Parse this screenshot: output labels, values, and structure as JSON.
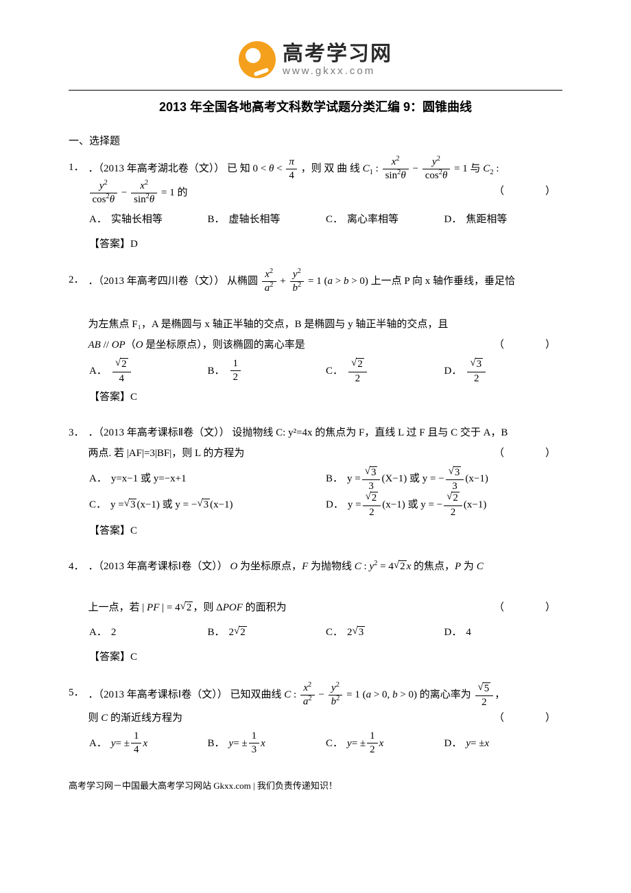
{
  "logo": {
    "cn": "高考学习网",
    "url": "www.gkxx.com"
  },
  "title": "2013 年全国各地高考文科数学试题分类汇编 9：圆锥曲线",
  "section_head": "一、选择题",
  "paren_marker": "（　　）",
  "questions": [
    {
      "num": "1．",
      "source": "．（2013 年高考湖北卷（文））",
      "stem_pre": "已 知 ",
      "stem_mid": "，则 双 曲 线 ",
      "stem_c1": " 与 ",
      "stem_end": " 的",
      "options": [
        {
          "label": "A．",
          "text": "实轴长相等"
        },
        {
          "label": "B．",
          "text": "虚轴长相等"
        },
        {
          "label": "C．",
          "text": "离心率相等"
        },
        {
          "label": "D．",
          "text": "焦距相等"
        }
      ],
      "answer": "【答案】D"
    },
    {
      "num": "2．",
      "source": "．（2013 年高考四川卷（文））",
      "stem_a": "从椭圆 ",
      "stem_b": " 上一点 P 向 x 轴作垂线，垂足恰",
      "stem_c": "为左焦点 F₁，A 是椭圆与 x 轴正半轴的交点，B 是椭圆与 y 轴正半轴的交点，且",
      "stem_d": "AB // OP（O 是坐标原点），则该椭圆的离心率是",
      "options": [
        {
          "label": "A．"
        },
        {
          "label": "B．"
        },
        {
          "label": "C．"
        },
        {
          "label": "D．"
        }
      ],
      "answer": "【答案】C"
    },
    {
      "num": "3．",
      "source": "．（2013 年高考课标Ⅱ卷（文））",
      "stem_a": "设抛物线 C: y²=4x 的焦点为 F，直线 L 过 F 且与 C 交于 A，B",
      "stem_b": "两点. 若 |AF|=3|BF|，则 L 的方程为",
      "options": [
        {
          "label": "A．",
          "text": "y=x−1 或 y=−x+1"
        },
        {
          "label": "B．"
        },
        {
          "label": "C．"
        },
        {
          "label": "D．"
        }
      ],
      "answer": "【答案】C"
    },
    {
      "num": "4．",
      "source": "．（2013 年高考课标Ⅰ卷（文））",
      "stem_a": "O 为坐标原点，F 为抛物线 ",
      "stem_b": " 的焦点，P 为 C",
      "stem_c": "上一点，若 ",
      "stem_d": "，则 ΔPOF 的面积为",
      "options": [
        {
          "label": "A．",
          "text": "2"
        },
        {
          "label": "B．"
        },
        {
          "label": "C．"
        },
        {
          "label": "D．",
          "text": "4"
        }
      ],
      "answer": "【答案】C"
    },
    {
      "num": "5．",
      "source": "．（2013 年高考课标Ⅰ卷（文））",
      "stem_a": "已知双曲线 ",
      "stem_b": " 的离心率为 ",
      "stem_c": "，",
      "stem_d": "则 C 的渐近线方程为",
      "options": [
        {
          "label": "A．"
        },
        {
          "label": "B．"
        },
        {
          "label": "C．"
        },
        {
          "label": "D．",
          "text": "y = ± x"
        }
      ]
    }
  ],
  "footer": "高考学习网－中国最大高考学习网站 Gkxx.com | 我们负责传递知识！",
  "colors": {
    "logo_orange": "#f5a01c",
    "text": "#000000",
    "url_gray": "#7a7a7a"
  }
}
